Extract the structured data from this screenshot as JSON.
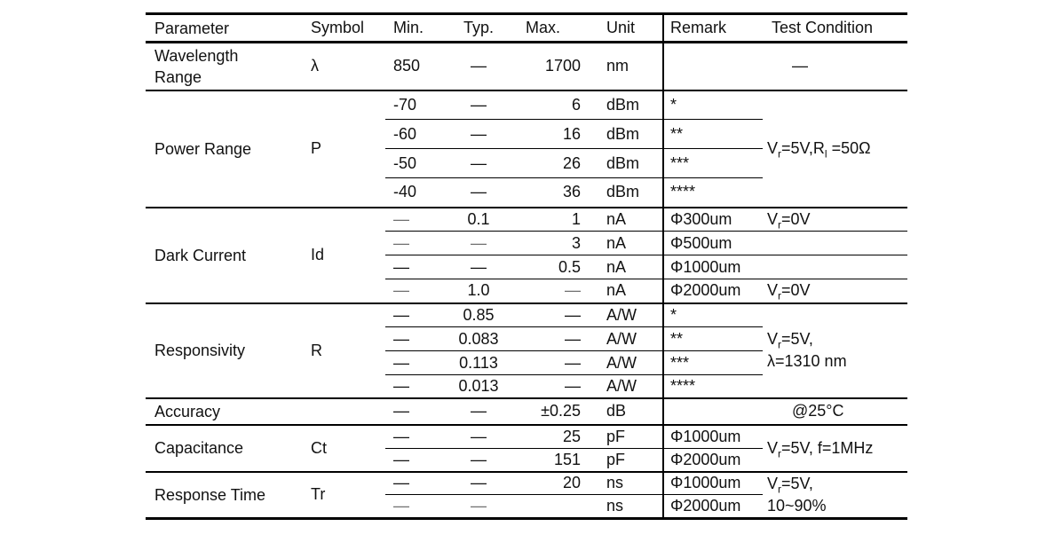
{
  "table": {
    "headers": {
      "parameter": "Parameter",
      "symbol": "Symbol",
      "min": "Min.",
      "typ": "Typ.",
      "max": "Max.",
      "unit": "Unit",
      "remark": "Remark",
      "test_condition": "Test Condition"
    },
    "wavelength": {
      "parameter": "Wavelength\nRange",
      "symbol": "λ",
      "min": "850",
      "typ": "—",
      "max": "1700",
      "unit": "nm",
      "remark": "",
      "test_condition": "—"
    },
    "power": {
      "parameter": "Power Range",
      "symbol": "P",
      "rows": [
        {
          "min": "-70",
          "typ": "—",
          "max": "6",
          "unit": "dBm",
          "remark": "*"
        },
        {
          "min": "-60",
          "typ": "—",
          "max": "16",
          "unit": "dBm",
          "remark": "**"
        },
        {
          "min": "-50",
          "typ": "—",
          "max": "26",
          "unit": "dBm",
          "remark": "***"
        },
        {
          "min": "-40",
          "typ": "—",
          "max": "36",
          "unit": "dBm",
          "remark": "****"
        }
      ],
      "test_condition": [
        {
          "v": "V"
        },
        {
          "v": "r",
          "sub": true
        },
        {
          "v": "=5V,R"
        },
        {
          "v": "l",
          "sub": true
        },
        {
          "v": " =50Ω"
        }
      ]
    },
    "dark_current": {
      "parameter": "Dark Current",
      "symbol": "Id",
      "rows": [
        {
          "min": "—",
          "typ": "0.1",
          "max": "1",
          "unit": "nA",
          "remark": "Φ300um",
          "test_condition": [
            {
              "v": "V"
            },
            {
              "v": "r",
              "sub": true
            },
            {
              "v": "=0V"
            }
          ]
        },
        {
          "min": "—",
          "typ": "—",
          "max": "3",
          "unit": "nA",
          "remark": "Φ500um"
        },
        {
          "min": "—",
          "typ": "—",
          "max": "0.5",
          "unit": "nA",
          "remark": "Φ1000um"
        },
        {
          "min": "—",
          "typ": "1.0",
          "max": "—",
          "unit": "nA",
          "remark": "Φ2000um",
          "test_condition": [
            {
              "v": "V"
            },
            {
              "v": "r",
              "sub": true
            },
            {
              "v": "=0V"
            }
          ]
        }
      ]
    },
    "responsivity": {
      "parameter": "Responsivity",
      "symbol": "R",
      "rows": [
        {
          "min": "—",
          "typ": "0.85",
          "max": "—",
          "unit": "A/W",
          "remark": "*"
        },
        {
          "min": "—",
          "typ": "0.083",
          "max": "—",
          "unit": "A/W",
          "remark": "**"
        },
        {
          "min": "—",
          "typ": "0.113",
          "max": "—",
          "unit": "A/W",
          "remark": "***"
        },
        {
          "min": "—",
          "typ": "0.013",
          "max": "—",
          "unit": "A/W",
          "remark": "****"
        }
      ],
      "test_condition": [
        {
          "v": "V"
        },
        {
          "v": "r",
          "sub": true
        },
        {
          "v": "=5V,"
        },
        {
          "br": true
        },
        {
          "v": "λ=1310 nm"
        }
      ]
    },
    "accuracy": {
      "parameter": "Accuracy",
      "symbol": "",
      "min": "—",
      "typ": "—",
      "max": "±0.25",
      "unit": "dB",
      "remark": "",
      "test_condition": "@25°C"
    },
    "capacitance": {
      "parameter": "Capacitance",
      "symbol": "Ct",
      "rows": [
        {
          "min": "—",
          "typ": "—",
          "max": "25",
          "unit": "pF",
          "remark": "Φ1000um"
        },
        {
          "min": "—",
          "typ": "—",
          "max": "151",
          "unit": "pF",
          "remark": "Φ2000um"
        }
      ],
      "test_condition": [
        {
          "v": "V"
        },
        {
          "v": "r",
          "sub": true
        },
        {
          "v": "=5V, f=1MHz"
        }
      ]
    },
    "response_time": {
      "parameter": "Response Time",
      "symbol": "Tr",
      "rows": [
        {
          "min": "—",
          "typ": "—",
          "max": "20",
          "unit": "ns",
          "remark": "Φ1000um"
        },
        {
          "min": "—",
          "typ": "—",
          "max": "",
          "unit": "ns",
          "remark": "Φ2000um"
        }
      ],
      "test_condition": [
        {
          "v": "V"
        },
        {
          "v": "r",
          "sub": true
        },
        {
          "v": "=5V,"
        },
        {
          "br": true
        },
        {
          "v": "10~90%"
        }
      ]
    }
  }
}
